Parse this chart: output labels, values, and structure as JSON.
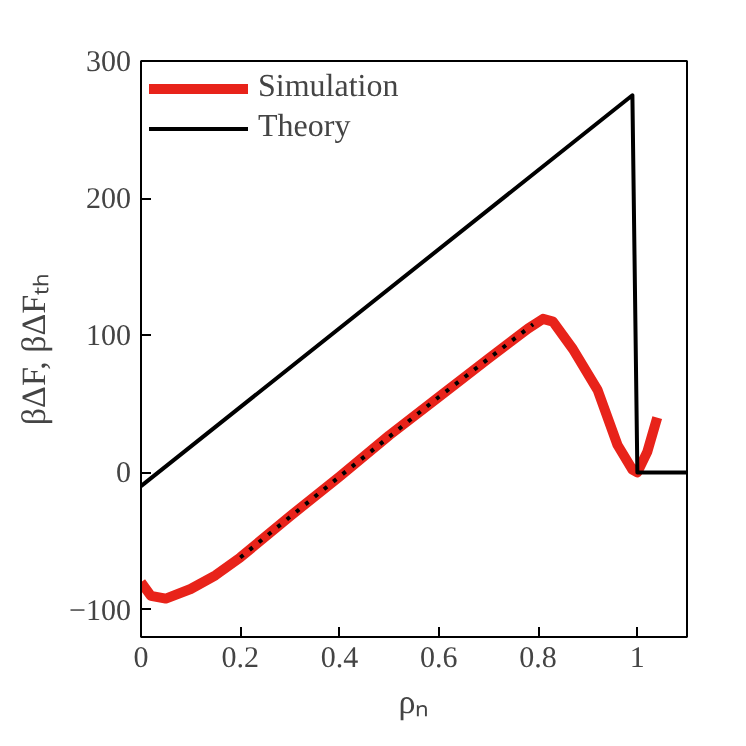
{
  "chart_data": {
    "type": "line",
    "xlabel": "ρₙ",
    "ylabel": "βΔF, βΔFₜₕ",
    "xlim": [
      0,
      1.1
    ],
    "ylim": [
      -120,
      300
    ],
    "xticks": [
      0,
      0.2,
      0.4,
      0.6,
      0.8,
      1
    ],
    "yticks": [
      -100,
      0,
      100,
      200,
      300
    ],
    "grid": false,
    "legend": "top left",
    "line_style": "solid",
    "series": [
      {
        "name": "Simulation",
        "color": "#e8231a",
        "x": [
          0,
          0.02,
          0.05,
          0.1,
          0.15,
          0.2,
          0.3,
          0.4,
          0.5,
          0.6,
          0.7,
          0.78,
          0.81,
          0.83,
          0.87,
          0.92,
          0.96,
          0.99,
          1.0,
          1.02,
          1.04
        ],
        "values": [
          -80,
          -90,
          -92,
          -85,
          -75,
          -62,
          -32,
          -3,
          27,
          55,
          83,
          105,
          112,
          110,
          90,
          60,
          20,
          2,
          0,
          15,
          40
        ]
      },
      {
        "name": "Theory",
        "color": "#000000",
        "x": [
          0,
          0.99,
          1.0,
          1.1
        ],
        "values": [
          -10,
          275,
          0,
          0
        ]
      },
      {
        "color": "#000000",
        "line_style": "dotted",
        "x": [
          0.2,
          0.4,
          0.6,
          0.79
        ],
        "values": [
          -62,
          -3,
          55,
          108
        ]
      }
    ]
  }
}
